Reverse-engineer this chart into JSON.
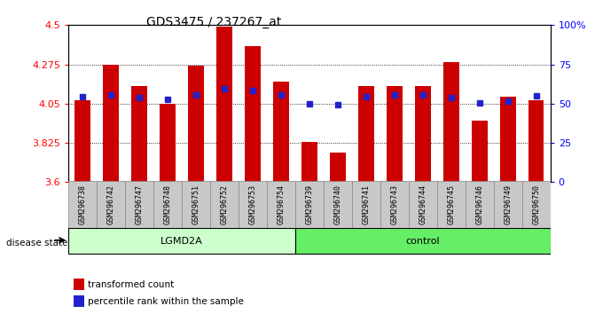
{
  "title": "GDS3475 / 237267_at",
  "samples": [
    "GSM296738",
    "GSM296742",
    "GSM296747",
    "GSM296748",
    "GSM296751",
    "GSM296752",
    "GSM296753",
    "GSM296754",
    "GSM296739",
    "GSM296740",
    "GSM296741",
    "GSM296743",
    "GSM296744",
    "GSM296745",
    "GSM296746",
    "GSM296749",
    "GSM296750"
  ],
  "bar_values": [
    4.07,
    4.275,
    4.15,
    4.05,
    4.27,
    4.49,
    4.38,
    4.175,
    3.83,
    3.77,
    4.15,
    4.15,
    4.15,
    4.29,
    3.95,
    4.09,
    4.07
  ],
  "percentile_values": [
    4.09,
    4.1,
    4.085,
    4.075,
    4.1,
    4.135,
    4.125,
    4.1,
    4.05,
    4.045,
    4.09,
    4.1,
    4.1,
    4.085,
    4.055,
    4.065,
    4.095
  ],
  "ylim_left": [
    3.6,
    4.5
  ],
  "ylim_right": [
    0,
    100
  ],
  "yticks_left": [
    3.6,
    3.825,
    4.05,
    4.275,
    4.5
  ],
  "ytick_labels_left": [
    "3.6",
    "3.825",
    "4.05",
    "4.275",
    "4.5"
  ],
  "yticks_right": [
    0,
    25,
    50,
    75,
    100
  ],
  "ytick_labels_right": [
    "0",
    "25",
    "50",
    "75",
    "100%"
  ],
  "bar_color": "#CC0000",
  "percentile_color": "#2222CC",
  "plot_bg_color": "#FFFFFF",
  "lgmd2a_count": 8,
  "control_count": 9,
  "lgmd2a_color": "#CCFFCC",
  "control_color": "#66EE66",
  "tick_label_bg": "#C8C8C8",
  "disease_state_label": "disease state",
  "lgmd2a_label": "LGMD2A",
  "control_label": "control",
  "legend_bar_label": "transformed count",
  "legend_pct_label": "percentile rank within the sample",
  "bar_width": 0.55
}
